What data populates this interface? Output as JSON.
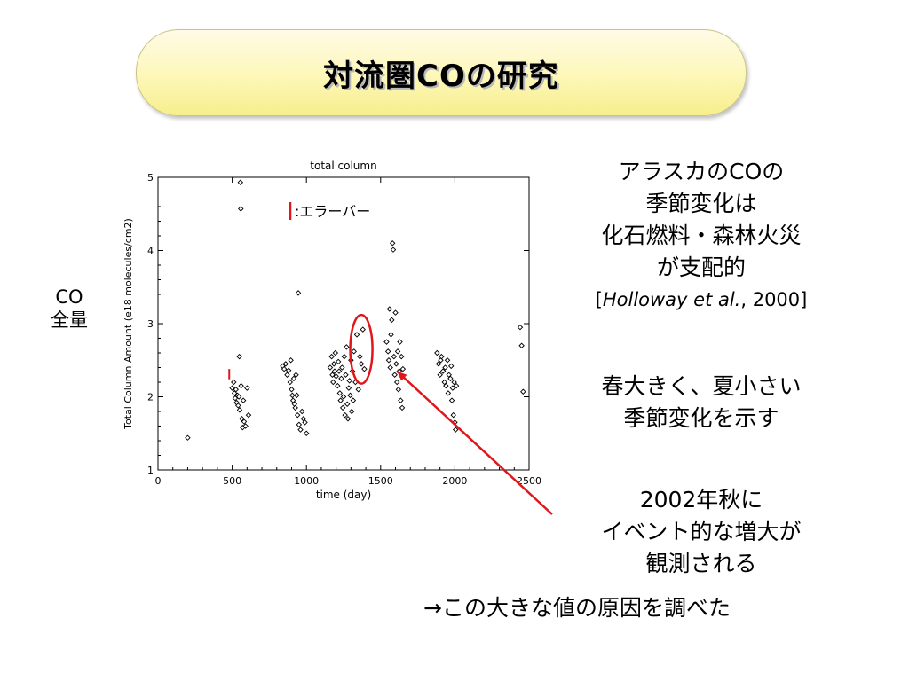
{
  "slide": {
    "title": "対流圏COの研究",
    "y_side_label_line1": "CO",
    "y_side_label_line2": "全量",
    "note1": {
      "line1": "アラスカのCOの",
      "line2": "季節変化は",
      "line3": "化石燃料・森林火災",
      "line4": "が支配的",
      "ref_open": "[",
      "ref_authors": "Holloway et al.",
      "ref_year": ", 2000]"
    },
    "note2": {
      "line1": "春大きく、夏小さい",
      "line2": "季節変化を示す"
    },
    "note3": {
      "line1": "2002年秋に",
      "line2": "イベント的な増大が",
      "line3": "観測される"
    },
    "note4": "→この大きな値の原因を調べた"
  },
  "colors": {
    "annotation_red": "#e0161b",
    "banner_fill": "#fdf7b8",
    "marker": "#000000"
  },
  "chart_data": {
    "type": "scatter",
    "title": "total column",
    "xlabel": "time (day)",
    "ylabel": "Total Column Amount (e18 molecules/cm2)",
    "xlim": [
      0,
      2500
    ],
    "ylim": [
      1,
      5
    ],
    "xticks": [
      0,
      500,
      1000,
      1500,
      2000,
      2500
    ],
    "yticks": [
      1,
      2,
      3,
      4,
      5
    ],
    "marker": "diamond",
    "legend": {
      "label": ":エラーバー",
      "placement": "top-center"
    },
    "error_bar": {
      "x": 480,
      "y_low": 2.24,
      "y_high": 2.38
    },
    "highlight_ellipse": {
      "cx": 1370,
      "cy": 2.65,
      "rx": 75,
      "ry": 0.47
    },
    "arrow": {
      "from_label": "note3",
      "to": [
        1610,
        2.35
      ]
    },
    "points": [
      [
        200,
        1.44
      ],
      [
        500,
        2.12
      ],
      [
        510,
        2.2
      ],
      [
        515,
        2.05
      ],
      [
        520,
        1.98
      ],
      [
        525,
        2.1
      ],
      [
        530,
        1.92
      ],
      [
        535,
        2.02
      ],
      [
        540,
        1.88
      ],
      [
        545,
        2.0
      ],
      [
        548,
        2.55
      ],
      [
        550,
        1.82
      ],
      [
        555,
        4.93
      ],
      [
        558,
        4.57
      ],
      [
        560,
        2.15
      ],
      [
        565,
        1.7
      ],
      [
        570,
        1.58
      ],
      [
        575,
        1.95
      ],
      [
        580,
        1.66
      ],
      [
        590,
        1.6
      ],
      [
        600,
        2.12
      ],
      [
        610,
        1.75
      ],
      [
        840,
        2.42
      ],
      [
        850,
        2.38
      ],
      [
        860,
        2.45
      ],
      [
        870,
        2.3
      ],
      [
        880,
        2.36
      ],
      [
        890,
        2.2
      ],
      [
        895,
        2.5
      ],
      [
        900,
        2.1
      ],
      [
        905,
        2.02
      ],
      [
        910,
        1.95
      ],
      [
        915,
        2.25
      ],
      [
        920,
        1.9
      ],
      [
        925,
        1.85
      ],
      [
        930,
        2.3
      ],
      [
        935,
        2.02
      ],
      [
        940,
        1.75
      ],
      [
        945,
        3.42
      ],
      [
        950,
        1.62
      ],
      [
        960,
        1.55
      ],
      [
        970,
        1.8
      ],
      [
        980,
        1.7
      ],
      [
        990,
        1.65
      ],
      [
        1000,
        1.5
      ],
      [
        1160,
        2.4
      ],
      [
        1170,
        2.55
      ],
      [
        1175,
        2.3
      ],
      [
        1180,
        2.2
      ],
      [
        1185,
        2.45
      ],
      [
        1190,
        2.35
      ],
      [
        1195,
        2.6
      ],
      [
        1200,
        2.28
      ],
      [
        1210,
        2.15
      ],
      [
        1215,
        2.48
      ],
      [
        1220,
        2.35
      ],
      [
        1225,
        2.05
      ],
      [
        1230,
        1.95
      ],
      [
        1235,
        2.25
      ],
      [
        1240,
        2.4
      ],
      [
        1245,
        1.85
      ],
      [
        1250,
        2.0
      ],
      [
        1255,
        2.55
      ],
      [
        1260,
        1.75
      ],
      [
        1265,
        2.3
      ],
      [
        1270,
        2.68
      ],
      [
        1275,
        1.9
      ],
      [
        1280,
        1.7
      ],
      [
        1285,
        2.12
      ],
      [
        1290,
        2.22
      ],
      [
        1295,
        2.02
      ],
      [
        1300,
        2.5
      ],
      [
        1305,
        1.8
      ],
      [
        1310,
        2.35
      ],
      [
        1315,
        1.95
      ],
      [
        1320,
        2.62
      ],
      [
        1330,
        2.2
      ],
      [
        1340,
        2.85
      ],
      [
        1350,
        2.1
      ],
      [
        1360,
        2.55
      ],
      [
        1370,
        2.45
      ],
      [
        1380,
        2.92
      ],
      [
        1390,
        2.38
      ],
      [
        1540,
        2.75
      ],
      [
        1550,
        2.62
      ],
      [
        1555,
        2.5
      ],
      [
        1560,
        3.2
      ],
      [
        1565,
        2.4
      ],
      [
        1570,
        2.85
      ],
      [
        1575,
        3.05
      ],
      [
        1580,
        4.1
      ],
      [
        1585,
        4.01
      ],
      [
        1590,
        2.55
      ],
      [
        1595,
        2.3
      ],
      [
        1600,
        3.15
      ],
      [
        1605,
        2.45
      ],
      [
        1610,
        2.2
      ],
      [
        1615,
        2.62
      ],
      [
        1620,
        2.1
      ],
      [
        1625,
        2.35
      ],
      [
        1630,
        2.75
      ],
      [
        1635,
        1.95
      ],
      [
        1640,
        2.55
      ],
      [
        1645,
        1.85
      ],
      [
        1650,
        2.38
      ],
      [
        1880,
        2.6
      ],
      [
        1890,
        2.45
      ],
      [
        1900,
        2.3
      ],
      [
        1905,
        2.5
      ],
      [
        1910,
        2.55
      ],
      [
        1920,
        2.35
      ],
      [
        1930,
        2.2
      ],
      [
        1935,
        2.4
      ],
      [
        1940,
        2.15
      ],
      [
        1950,
        2.5
      ],
      [
        1955,
        2.05
      ],
      [
        1960,
        2.3
      ],
      [
        1970,
        2.25
      ],
      [
        1975,
        2.42
      ],
      [
        1980,
        1.95
      ],
      [
        1985,
        2.12
      ],
      [
        1990,
        1.75
      ],
      [
        1995,
        2.2
      ],
      [
        2000,
        1.65
      ],
      [
        2005,
        1.55
      ],
      [
        2010,
        2.15
      ],
      [
        2440,
        2.95
      ],
      [
        2450,
        2.7
      ],
      [
        2460,
        2.07
      ]
    ]
  }
}
